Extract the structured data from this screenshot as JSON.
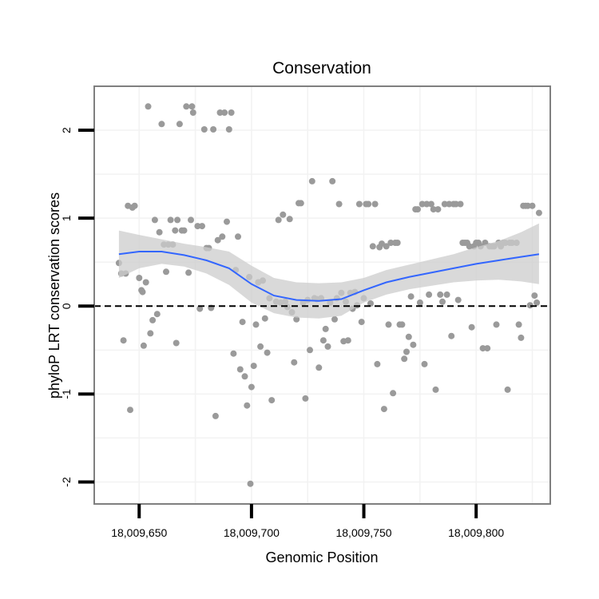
{
  "chart_data": {
    "type": "scatter",
    "title": "Conservation",
    "xlabel": "Genomic Position",
    "ylabel": "phyloP LRT conservation scores",
    "xlim": [
      18009630,
      18009833
    ],
    "ylim": [
      -2.25,
      2.5
    ],
    "xticks": [
      18009650,
      18009700,
      18009750,
      18009800
    ],
    "xtick_labels": [
      "18,009,650",
      "18,009,700",
      "18,009,750",
      "18,009,800"
    ],
    "yticks": [
      -2,
      -1,
      0,
      1,
      2
    ],
    "ytick_labels": [
      "-2",
      "-1",
      "0",
      "1",
      "2"
    ],
    "grid": true,
    "reference_line": {
      "y": 0,
      "style": "dashed"
    },
    "colors": {
      "points": "#9a9a9a",
      "smooth_line": "#3366ff",
      "ribbon": "#cccccc",
      "grid": "#f2f2f2",
      "border": "#7f7f7f"
    },
    "points": [
      [
        18009641,
        0.49
      ],
      [
        18009642,
        0.37
      ],
      [
        18009643,
        -0.39
      ],
      [
        18009644,
        0.37
      ],
      [
        18009645,
        1.14
      ],
      [
        18009646,
        -1.18
      ],
      [
        18009647,
        1.12
      ],
      [
        18009648,
        1.14
      ],
      [
        18009650,
        0.32
      ],
      [
        18009651,
        0.18
      ],
      [
        18009651.5,
        0.16
      ],
      [
        18009652,
        -0.45
      ],
      [
        18009653,
        0.27
      ],
      [
        18009654,
        2.27
      ],
      [
        18009655,
        -0.31
      ],
      [
        18009656,
        -0.16
      ],
      [
        18009657,
        0.98
      ],
      [
        18009658,
        -0.09
      ],
      [
        18009659,
        0.84
      ],
      [
        18009660,
        2.07
      ],
      [
        18009661,
        0.7
      ],
      [
        18009662,
        0.39
      ],
      [
        18009663,
        0.7
      ],
      [
        18009664,
        0.98
      ],
      [
        18009665,
        0.7
      ],
      [
        18009666,
        0.86
      ],
      [
        18009666.5,
        -0.42
      ],
      [
        18009667,
        0.98
      ],
      [
        18009668,
        2.07
      ],
      [
        18009669,
        0.86
      ],
      [
        18009670,
        0.86
      ],
      [
        18009671,
        2.27
      ],
      [
        18009672,
        0.38
      ],
      [
        18009673,
        0.98
      ],
      [
        18009673.5,
        2.27
      ],
      [
        18009674,
        2.2
      ],
      [
        18009676,
        0.91
      ],
      [
        18009677,
        -0.03
      ],
      [
        18009678,
        0.91
      ],
      [
        18009679,
        2.01
      ],
      [
        18009680,
        0.66
      ],
      [
        18009681,
        0.66
      ],
      [
        18009682,
        -0.02
      ],
      [
        18009683,
        2.01
      ],
      [
        18009684,
        -1.25
      ],
      [
        18009685,
        0.75
      ],
      [
        18009686,
        2.2
      ],
      [
        18009687,
        0.79
      ],
      [
        18009688,
        2.2
      ],
      [
        18009689,
        0.96
      ],
      [
        18009690,
        2.01
      ],
      [
        18009691,
        2.2
      ],
      [
        18009692,
        -0.54
      ],
      [
        18009693,
        0.41
      ],
      [
        18009694,
        0.79
      ],
      [
        18009695,
        -0.72
      ],
      [
        18009696,
        -0.18
      ],
      [
        18009697,
        -0.8
      ],
      [
        18009698,
        -1.13
      ],
      [
        18009699,
        0.33
      ],
      [
        18009699.5,
        -2.02
      ],
      [
        18009700,
        -0.92
      ],
      [
        18009701,
        -0.68
      ],
      [
        18009702,
        -0.21
      ],
      [
        18009703,
        0.27
      ],
      [
        18009704,
        -0.46
      ],
      [
        18009705,
        0.29
      ],
      [
        18009706,
        -0.14
      ],
      [
        18009707,
        -0.53
      ],
      [
        18009708,
        0.09
      ],
      [
        18009709,
        -1.07
      ],
      [
        18009711,
        0.05
      ],
      [
        18009712,
        0.98
      ],
      [
        18009713,
        0.04
      ],
      [
        18009714,
        1.04
      ],
      [
        18009715,
        0.05
      ],
      [
        18009716,
        -0.01
      ],
      [
        18009717,
        0.99
      ],
      [
        18009718,
        -0.07
      ],
      [
        18009719,
        -0.64
      ],
      [
        18009720,
        -0.15
      ],
      [
        18009721,
        1.17
      ],
      [
        18009722,
        1.17
      ],
      [
        18009723,
        0.04
      ],
      [
        18009724,
        -1.05
      ],
      [
        18009725,
        0.07
      ],
      [
        18009726,
        -0.5
      ],
      [
        18009727,
        1.42
      ],
      [
        18009728,
        0.09
      ],
      [
        18009729,
        0.08
      ],
      [
        18009730,
        -0.7
      ],
      [
        18009731,
        0.09
      ],
      [
        18009732,
        -0.39
      ],
      [
        18009733,
        -0.26
      ],
      [
        18009734,
        -0.46
      ],
      [
        18009735,
        0.04
      ],
      [
        18009736,
        1.42
      ],
      [
        18009737,
        -0.15
      ],
      [
        18009738,
        0.09
      ],
      [
        18009739,
        1.16
      ],
      [
        18009740,
        0.15
      ],
      [
        18009741,
        -0.4
      ],
      [
        18009742,
        0.05
      ],
      [
        18009743,
        -0.39
      ],
      [
        18009744,
        0.15
      ],
      [
        18009745,
        -0.03
      ],
      [
        18009746,
        0.16
      ],
      [
        18009747,
        0.01
      ],
      [
        18009748,
        1.16
      ],
      [
        18009749,
        -0.18
      ],
      [
        18009750,
        0.09
      ],
      [
        18009751,
        1.16
      ],
      [
        18009752,
        1.16
      ],
      [
        18009753,
        0.03
      ],
      [
        18009754,
        0.68
      ],
      [
        18009755,
        1.16
      ],
      [
        18009756,
        -0.66
      ],
      [
        18009757,
        0.67
      ],
      [
        18009758,
        0.71
      ],
      [
        18009759,
        -1.17
      ],
      [
        18009760,
        0.68
      ],
      [
        18009761,
        -0.21
      ],
      [
        18009762,
        0.72
      ],
      [
        18009763,
        -0.99
      ],
      [
        18009764,
        0.72
      ],
      [
        18009765,
        0.72
      ],
      [
        18009766,
        -0.21
      ],
      [
        18009767,
        -0.21
      ],
      [
        18009768,
        -0.6
      ],
      [
        18009769,
        -0.52
      ],
      [
        18009770,
        -0.35
      ],
      [
        18009771,
        0.11
      ],
      [
        18009772,
        -0.44
      ],
      [
        18009773,
        1.1
      ],
      [
        18009774,
        1.1
      ],
      [
        18009775,
        0.04
      ],
      [
        18009776,
        1.16
      ],
      [
        18009777,
        -0.66
      ],
      [
        18009778,
        1.16
      ],
      [
        18009779,
        0.13
      ],
      [
        18009780,
        1.16
      ],
      [
        18009781,
        1.1
      ],
      [
        18009782,
        -0.95
      ],
      [
        18009783,
        1.1
      ],
      [
        18009784,
        0.13
      ],
      [
        18009785,
        0.05
      ],
      [
        18009786,
        1.16
      ],
      [
        18009787,
        0.13
      ],
      [
        18009788,
        1.16
      ],
      [
        18009789,
        -0.34
      ],
      [
        18009790,
        1.16
      ],
      [
        18009791,
        1.16
      ],
      [
        18009792,
        0.07
      ],
      [
        18009793,
        1.16
      ],
      [
        18009794,
        0.72
      ],
      [
        18009795,
        0.72
      ],
      [
        18009796,
        0.72
      ],
      [
        18009797,
        0.68
      ],
      [
        18009798,
        -0.24
      ],
      [
        18009799,
        0.68
      ],
      [
        18009800,
        0.72
      ],
      [
        18009801,
        0.72
      ],
      [
        18009802,
        0.68
      ],
      [
        18009803,
        -0.48
      ],
      [
        18009804,
        0.72
      ],
      [
        18009805,
        -0.48
      ],
      [
        18009806,
        0.68
      ],
      [
        18009807,
        0.68
      ],
      [
        18009808,
        0.68
      ],
      [
        18009809,
        -0.21
      ],
      [
        18009810,
        0.72
      ],
      [
        18009811,
        0.68
      ],
      [
        18009812,
        0.72
      ],
      [
        18009813,
        0.72
      ],
      [
        18009814,
        -0.95
      ],
      [
        18009815,
        0.72
      ],
      [
        18009816,
        0.72
      ],
      [
        18009818,
        0.72
      ],
      [
        18009819,
        -0.21
      ],
      [
        18009820,
        -0.36
      ],
      [
        18009821,
        1.14
      ],
      [
        18009822,
        1.14
      ],
      [
        18009823,
        1.14
      ],
      [
        18009824,
        0.01
      ],
      [
        18009825,
        1.14
      ],
      [
        18009826,
        0.12
      ],
      [
        18009827,
        0.04
      ],
      [
        18009828,
        1.06
      ]
    ],
    "smooth": {
      "x": [
        18009641,
        18009650,
        18009660,
        18009670,
        18009680,
        18009690,
        18009700,
        18009710,
        18009720,
        18009730,
        18009740,
        18009750,
        18009760,
        18009770,
        18009780,
        18009790,
        18009800,
        18009810,
        18009820,
        18009828
      ],
      "y": [
        0.59,
        0.62,
        0.62,
        0.58,
        0.52,
        0.43,
        0.25,
        0.12,
        0.07,
        0.06,
        0.08,
        0.18,
        0.27,
        0.33,
        0.38,
        0.43,
        0.48,
        0.52,
        0.56,
        0.59
      ],
      "lower": [
        0.32,
        0.43,
        0.48,
        0.45,
        0.37,
        0.24,
        0.04,
        -0.08,
        -0.13,
        -0.14,
        -0.11,
        0.04,
        0.13,
        0.19,
        0.23,
        0.27,
        0.29,
        0.3,
        0.28,
        0.25
      ],
      "upper": [
        0.86,
        0.81,
        0.76,
        0.71,
        0.67,
        0.62,
        0.46,
        0.32,
        0.27,
        0.26,
        0.27,
        0.32,
        0.41,
        0.47,
        0.53,
        0.59,
        0.67,
        0.74,
        0.84,
        0.94
      ]
    }
  }
}
